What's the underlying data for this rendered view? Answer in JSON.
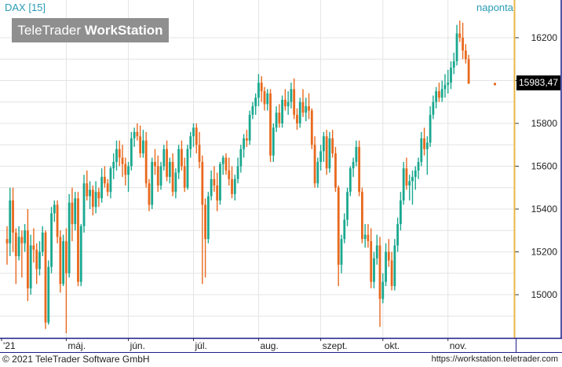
{
  "header": {
    "title": "DAX [15]",
    "period": "naponta",
    "logo_light": "TeleTrader ",
    "logo_bold": "WorkStation"
  },
  "footer": {
    "copyright": "© 2021  TeleTrader Software GmbH",
    "url": "https://workstation.teletrader.com"
  },
  "colors": {
    "up": "#1aa88f",
    "down": "#e8691e",
    "grid": "#e4e4e4",
    "frame": "#1d1d8c",
    "axis_edge": "#e8b64a"
  },
  "chart_data": {
    "type": "candlestick",
    "instrument": "DAX",
    "last_value_label": "15983,47",
    "last_value": 15983.47,
    "y_ticks": [
      15000,
      15200,
      15400,
      15600,
      15800,
      16000,
      16200
    ],
    "y_tick_labels": [
      "15000",
      "15200",
      "15400",
      "15600",
      "15800",
      "16000",
      "16200"
    ],
    "ylim": [
      14870,
      16280
    ],
    "x_tick_labels": [
      "'21",
      "máj.",
      "jún.",
      "júl.",
      "aug.",
      "szept.",
      "okt.",
      "nov."
    ],
    "x_tick_positions": [
      0,
      20,
      41,
      63,
      85,
      106,
      127,
      149
    ],
    "grid": true,
    "candles": [
      {
        "o": 15260,
        "h": 15320,
        "l": 15140,
        "c": 15240
      },
      {
        "o": 15240,
        "h": 15500,
        "l": 15180,
        "c": 15440
      },
      {
        "o": 15440,
        "h": 15500,
        "l": 15200,
        "c": 15290
      },
      {
        "o": 15290,
        "h": 15310,
        "l": 15050,
        "c": 15180
      },
      {
        "o": 15180,
        "h": 15320,
        "l": 15160,
        "c": 15270
      },
      {
        "o": 15270,
        "h": 15300,
        "l": 15080,
        "c": 15240
      },
      {
        "o": 15240,
        "h": 15330,
        "l": 15200,
        "c": 15300
      },
      {
        "o": 15300,
        "h": 15400,
        "l": 14970,
        "c": 15030
      },
      {
        "o": 15030,
        "h": 15280,
        "l": 15000,
        "c": 15230
      },
      {
        "o": 15230,
        "h": 15310,
        "l": 15150,
        "c": 15210
      },
      {
        "o": 15210,
        "h": 15240,
        "l": 15050,
        "c": 15120
      },
      {
        "o": 15120,
        "h": 15250,
        "l": 15090,
        "c": 15200
      },
      {
        "o": 15200,
        "h": 15320,
        "l": 15180,
        "c": 15290
      },
      {
        "o": 15290,
        "h": 15300,
        "l": 14840,
        "c": 14870
      },
      {
        "o": 14870,
        "h": 15160,
        "l": 14860,
        "c": 15130
      },
      {
        "o": 15130,
        "h": 15410,
        "l": 15100,
        "c": 15380
      },
      {
        "o": 15380,
        "h": 15440,
        "l": 15340,
        "c": 15420
      },
      {
        "o": 15420,
        "h": 15440,
        "l": 15240,
        "c": 15270
      },
      {
        "o": 15270,
        "h": 15300,
        "l": 15010,
        "c": 15050
      },
      {
        "o": 15050,
        "h": 15280,
        "l": 15040,
        "c": 15250
      },
      {
        "o": 15250,
        "h": 15310,
        "l": 14820,
        "c": 15100
      },
      {
        "o": 15100,
        "h": 15470,
        "l": 15080,
        "c": 15430
      },
      {
        "o": 15430,
        "h": 15500,
        "l": 15250,
        "c": 15330
      },
      {
        "o": 15330,
        "h": 15480,
        "l": 15300,
        "c": 15450
      },
      {
        "o": 15450,
        "h": 15480,
        "l": 15040,
        "c": 15060
      },
      {
        "o": 15060,
        "h": 15330,
        "l": 15040,
        "c": 15320
      },
      {
        "o": 15320,
        "h": 15560,
        "l": 15290,
        "c": 15520
      },
      {
        "o": 15520,
        "h": 15580,
        "l": 15440,
        "c": 15460
      },
      {
        "o": 15460,
        "h": 15530,
        "l": 15400,
        "c": 15490
      },
      {
        "o": 15490,
        "h": 15510,
        "l": 15370,
        "c": 15410
      },
      {
        "o": 15410,
        "h": 15530,
        "l": 15380,
        "c": 15480
      },
      {
        "o": 15480,
        "h": 15500,
        "l": 15410,
        "c": 15450
      },
      {
        "o": 15450,
        "h": 15590,
        "l": 15430,
        "c": 15550
      },
      {
        "o": 15550,
        "h": 15600,
        "l": 15500,
        "c": 15520
      },
      {
        "o": 15520,
        "h": 15540,
        "l": 15460,
        "c": 15480
      },
      {
        "o": 15480,
        "h": 15600,
        "l": 15450,
        "c": 15590
      },
      {
        "o": 15590,
        "h": 15660,
        "l": 15540,
        "c": 15620
      },
      {
        "o": 15620,
        "h": 15720,
        "l": 15580,
        "c": 15680
      },
      {
        "o": 15680,
        "h": 15720,
        "l": 15600,
        "c": 15640
      },
      {
        "o": 15640,
        "h": 15700,
        "l": 15550,
        "c": 15610
      },
      {
        "o": 15610,
        "h": 15640,
        "l": 15510,
        "c": 15560
      },
      {
        "o": 15560,
        "h": 15620,
        "l": 15480,
        "c": 15600
      },
      {
        "o": 15600,
        "h": 15760,
        "l": 15580,
        "c": 15730
      },
      {
        "o": 15730,
        "h": 15780,
        "l": 15690,
        "c": 15760
      },
      {
        "o": 15760,
        "h": 15800,
        "l": 15720,
        "c": 15740
      },
      {
        "o": 15740,
        "h": 15790,
        "l": 15640,
        "c": 15660
      },
      {
        "o": 15660,
        "h": 15770,
        "l": 15640,
        "c": 15720
      },
      {
        "o": 15720,
        "h": 15760,
        "l": 15500,
        "c": 15520
      },
      {
        "o": 15520,
        "h": 15540,
        "l": 15390,
        "c": 15420
      },
      {
        "o": 15420,
        "h": 15640,
        "l": 15400,
        "c": 15620
      },
      {
        "o": 15620,
        "h": 15680,
        "l": 15560,
        "c": 15600
      },
      {
        "o": 15600,
        "h": 15650,
        "l": 15480,
        "c": 15510
      },
      {
        "o": 15510,
        "h": 15620,
        "l": 15490,
        "c": 15600
      },
      {
        "o": 15600,
        "h": 15700,
        "l": 15580,
        "c": 15680
      },
      {
        "o": 15680,
        "h": 15720,
        "l": 15530,
        "c": 15550
      },
      {
        "o": 15550,
        "h": 15640,
        "l": 15520,
        "c": 15620
      },
      {
        "o": 15620,
        "h": 15660,
        "l": 15460,
        "c": 15480
      },
      {
        "o": 15480,
        "h": 15590,
        "l": 15450,
        "c": 15570
      },
      {
        "o": 15570,
        "h": 15700,
        "l": 15540,
        "c": 15680
      },
      {
        "o": 15680,
        "h": 15720,
        "l": 15580,
        "c": 15600
      },
      {
        "o": 15600,
        "h": 15640,
        "l": 15480,
        "c": 15500
      },
      {
        "o": 15500,
        "h": 15700,
        "l": 15490,
        "c": 15680
      },
      {
        "o": 15680,
        "h": 15760,
        "l": 15640,
        "c": 15740
      },
      {
        "o": 15740,
        "h": 15800,
        "l": 15690,
        "c": 15780
      },
      {
        "o": 15780,
        "h": 15800,
        "l": 15660,
        "c": 15700
      },
      {
        "o": 15700,
        "h": 15760,
        "l": 15590,
        "c": 15620
      },
      {
        "o": 15620,
        "h": 15650,
        "l": 15050,
        "c": 15420
      },
      {
        "o": 15420,
        "h": 15450,
        "l": 15080,
        "c": 15260
      },
      {
        "o": 15260,
        "h": 15480,
        "l": 15240,
        "c": 15460
      },
      {
        "o": 15460,
        "h": 15580,
        "l": 15440,
        "c": 15540
      },
      {
        "o": 15540,
        "h": 15600,
        "l": 15480,
        "c": 15510
      },
      {
        "o": 15510,
        "h": 15570,
        "l": 15390,
        "c": 15440
      },
      {
        "o": 15440,
        "h": 15620,
        "l": 15420,
        "c": 15610
      },
      {
        "o": 15610,
        "h": 15650,
        "l": 15560,
        "c": 15640
      },
      {
        "o": 15640,
        "h": 15660,
        "l": 15560,
        "c": 15580
      },
      {
        "o": 15580,
        "h": 15640,
        "l": 15510,
        "c": 15540
      },
      {
        "o": 15540,
        "h": 15600,
        "l": 15450,
        "c": 15470
      },
      {
        "o": 15470,
        "h": 15560,
        "l": 15440,
        "c": 15540
      },
      {
        "o": 15540,
        "h": 15640,
        "l": 15520,
        "c": 15600
      },
      {
        "o": 15600,
        "h": 15700,
        "l": 15570,
        "c": 15680
      },
      {
        "o": 15680,
        "h": 15750,
        "l": 15640,
        "c": 15730
      },
      {
        "o": 15730,
        "h": 15770,
        "l": 15690,
        "c": 15720
      },
      {
        "o": 15720,
        "h": 15860,
        "l": 15700,
        "c": 15840
      },
      {
        "o": 15840,
        "h": 15900,
        "l": 15820,
        "c": 15880
      },
      {
        "o": 15880,
        "h": 15940,
        "l": 15840,
        "c": 15920
      },
      {
        "o": 15920,
        "h": 16030,
        "l": 15880,
        "c": 15990
      },
      {
        "o": 15990,
        "h": 16020,
        "l": 15900,
        "c": 15950
      },
      {
        "o": 15950,
        "h": 15970,
        "l": 15860,
        "c": 15890
      },
      {
        "o": 15890,
        "h": 15960,
        "l": 15860,
        "c": 15940
      },
      {
        "o": 15940,
        "h": 15960,
        "l": 15620,
        "c": 15650
      },
      {
        "o": 15650,
        "h": 15800,
        "l": 15620,
        "c": 15780
      },
      {
        "o": 15780,
        "h": 15880,
        "l": 15760,
        "c": 15850
      },
      {
        "o": 15850,
        "h": 15890,
        "l": 15780,
        "c": 15800
      },
      {
        "o": 15800,
        "h": 15930,
        "l": 15780,
        "c": 15910
      },
      {
        "o": 15910,
        "h": 15960,
        "l": 15860,
        "c": 15880
      },
      {
        "o": 15880,
        "h": 15950,
        "l": 15840,
        "c": 15900
      },
      {
        "o": 15900,
        "h": 15990,
        "l": 15870,
        "c": 15960
      },
      {
        "o": 15960,
        "h": 16010,
        "l": 15820,
        "c": 15840
      },
      {
        "o": 15840,
        "h": 15870,
        "l": 15770,
        "c": 15800
      },
      {
        "o": 15800,
        "h": 15920,
        "l": 15780,
        "c": 15900
      },
      {
        "o": 15900,
        "h": 15960,
        "l": 15830,
        "c": 15850
      },
      {
        "o": 15850,
        "h": 15920,
        "l": 15810,
        "c": 15880
      },
      {
        "o": 15880,
        "h": 15940,
        "l": 15820,
        "c": 15860
      },
      {
        "o": 15860,
        "h": 15870,
        "l": 15680,
        "c": 15700
      },
      {
        "o": 15700,
        "h": 15740,
        "l": 15500,
        "c": 15520
      },
      {
        "o": 15520,
        "h": 15640,
        "l": 15500,
        "c": 15620
      },
      {
        "o": 15620,
        "h": 15700,
        "l": 15580,
        "c": 15670
      },
      {
        "o": 15670,
        "h": 15760,
        "l": 15620,
        "c": 15740
      },
      {
        "o": 15740,
        "h": 15770,
        "l": 15560,
        "c": 15590
      },
      {
        "o": 15590,
        "h": 15760,
        "l": 15570,
        "c": 15730
      },
      {
        "o": 15730,
        "h": 15770,
        "l": 15640,
        "c": 15660
      },
      {
        "o": 15660,
        "h": 15690,
        "l": 15480,
        "c": 15500
      },
      {
        "o": 15500,
        "h": 15510,
        "l": 15040,
        "c": 15140
      },
      {
        "o": 15140,
        "h": 15280,
        "l": 15100,
        "c": 15260
      },
      {
        "o": 15260,
        "h": 15380,
        "l": 15240,
        "c": 15350
      },
      {
        "o": 15350,
        "h": 15500,
        "l": 15320,
        "c": 15480
      },
      {
        "o": 15480,
        "h": 15600,
        "l": 15460,
        "c": 15590
      },
      {
        "o": 15590,
        "h": 15640,
        "l": 15550,
        "c": 15620
      },
      {
        "o": 15620,
        "h": 15720,
        "l": 15600,
        "c": 15690
      },
      {
        "o": 15690,
        "h": 15720,
        "l": 15460,
        "c": 15480
      },
      {
        "o": 15480,
        "h": 15500,
        "l": 15240,
        "c": 15260
      },
      {
        "o": 15260,
        "h": 15330,
        "l": 15220,
        "c": 15280
      },
      {
        "o": 15280,
        "h": 15330,
        "l": 15220,
        "c": 15250
      },
      {
        "o": 15250,
        "h": 15310,
        "l": 15030,
        "c": 15060
      },
      {
        "o": 15060,
        "h": 15200,
        "l": 15030,
        "c": 15170
      },
      {
        "o": 15170,
        "h": 15280,
        "l": 15140,
        "c": 15230
      },
      {
        "o": 15230,
        "h": 15270,
        "l": 14850,
        "c": 14980
      },
      {
        "o": 14980,
        "h": 15100,
        "l": 14960,
        "c": 15060
      },
      {
        "o": 15060,
        "h": 15240,
        "l": 15040,
        "c": 15200
      },
      {
        "o": 15200,
        "h": 15260,
        "l": 15130,
        "c": 15160
      },
      {
        "o": 15160,
        "h": 15200,
        "l": 15020,
        "c": 15040
      },
      {
        "o": 15040,
        "h": 15260,
        "l": 15020,
        "c": 15230
      },
      {
        "o": 15230,
        "h": 15360,
        "l": 15200,
        "c": 15330
      },
      {
        "o": 15330,
        "h": 15480,
        "l": 15300,
        "c": 15440
      },
      {
        "o": 15440,
        "h": 15620,
        "l": 15420,
        "c": 15590
      },
      {
        "o": 15590,
        "h": 15640,
        "l": 15490,
        "c": 15510
      },
      {
        "o": 15510,
        "h": 15560,
        "l": 15440,
        "c": 15530
      },
      {
        "o": 15530,
        "h": 15580,
        "l": 15420,
        "c": 15550
      },
      {
        "o": 15550,
        "h": 15600,
        "l": 15490,
        "c": 15580
      },
      {
        "o": 15580,
        "h": 15640,
        "l": 15540,
        "c": 15620
      },
      {
        "o": 15620,
        "h": 15760,
        "l": 15600,
        "c": 15730
      },
      {
        "o": 15730,
        "h": 15780,
        "l": 15650,
        "c": 15680
      },
      {
        "o": 15680,
        "h": 15740,
        "l": 15560,
        "c": 15710
      },
      {
        "o": 15710,
        "h": 15880,
        "l": 15690,
        "c": 15840
      },
      {
        "o": 15840,
        "h": 15930,
        "l": 15820,
        "c": 15900
      },
      {
        "o": 15900,
        "h": 15970,
        "l": 15870,
        "c": 15950
      },
      {
        "o": 15950,
        "h": 15990,
        "l": 15900,
        "c": 15920
      },
      {
        "o": 15920,
        "h": 16000,
        "l": 15900,
        "c": 15960
      },
      {
        "o": 15960,
        "h": 16030,
        "l": 15920,
        "c": 15980
      },
      {
        "o": 15980,
        "h": 16050,
        "l": 15940,
        "c": 15990
      },
      {
        "o": 15990,
        "h": 16090,
        "l": 15960,
        "c": 16060
      },
      {
        "o": 16060,
        "h": 16130,
        "l": 16030,
        "c": 16090
      },
      {
        "o": 16090,
        "h": 16260,
        "l": 16070,
        "c": 16220
      },
      {
        "o": 16220,
        "h": 16280,
        "l": 16180,
        "c": 16200
      },
      {
        "o": 16200,
        "h": 16270,
        "l": 16100,
        "c": 16140
      },
      {
        "o": 16140,
        "h": 16170,
        "l": 16080,
        "c": 16100
      },
      {
        "o": 16100,
        "h": 16120,
        "l": 15990,
        "c": 15985
      }
    ]
  }
}
